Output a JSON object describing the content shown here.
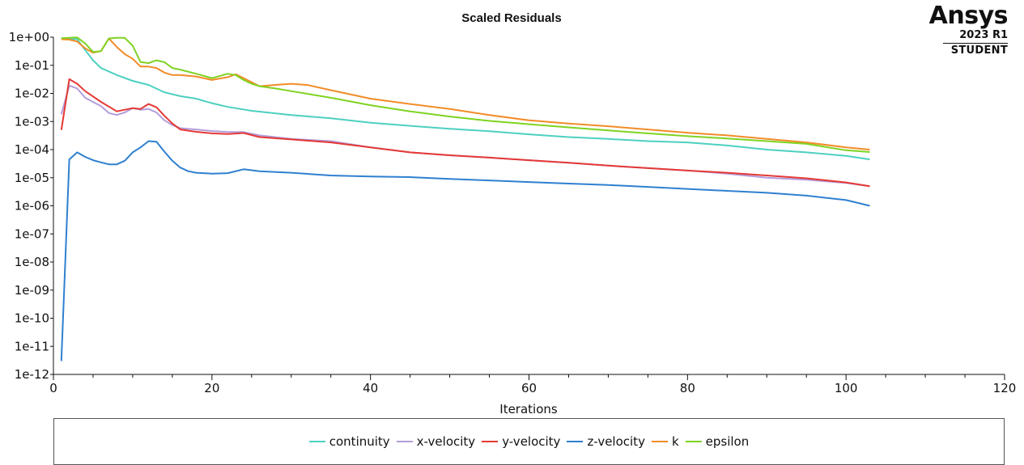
{
  "logo": {
    "brand": "Ansys",
    "version": "2023 R1",
    "edition": "STUDENT"
  },
  "chart_data": {
    "type": "line",
    "title": "Scaled Residuals",
    "xlabel": "Iterations",
    "ylabel": "",
    "xlim": [
      0,
      120
    ],
    "ylim": [
      1e-12,
      1
    ],
    "yscale": "log",
    "xticks": [
      0,
      20,
      40,
      60,
      80,
      100,
      120
    ],
    "xtick_labels": [
      "0",
      "20",
      "40",
      "60",
      "80",
      "100",
      "120"
    ],
    "yticks": [
      1,
      0.1,
      0.01,
      0.001,
      0.0001,
      1e-05,
      1e-06,
      1e-07,
      1e-08,
      1e-09,
      1e-10,
      1e-11,
      1e-12
    ],
    "ytick_labels": [
      "1e+00",
      "1e-01",
      "1e-02",
      "1e-03",
      "1e-04",
      "1e-05",
      "1e-06",
      "1e-07",
      "1e-08",
      "1e-09",
      "1e-10",
      "1e-11",
      "1e-12"
    ],
    "grid": false,
    "legend_position": "bottom",
    "series": [
      {
        "name": "continuity",
        "color": "#4dd0c0",
        "x": [
          1,
          2,
          3,
          4,
          5,
          6,
          8,
          10,
          12,
          14,
          16,
          18,
          20,
          22,
          25,
          30,
          35,
          40,
          45,
          50,
          55,
          60,
          65,
          70,
          75,
          80,
          85,
          90,
          95,
          100,
          103
        ],
        "y": [
          0.9,
          0.88,
          0.85,
          0.35,
          0.15,
          0.08,
          0.045,
          0.028,
          0.02,
          0.011,
          0.008,
          0.0065,
          0.0045,
          0.0033,
          0.0024,
          0.0017,
          0.0013,
          0.0009,
          0.0007,
          0.00055,
          0.00045,
          0.00035,
          0.00028,
          0.00024,
          0.0002,
          0.00018,
          0.00014,
          0.0001,
          8e-05,
          6e-05,
          4.5e-05
        ]
      },
      {
        "name": "x-velocity",
        "color": "#b39ddb",
        "x": [
          1,
          2,
          3,
          4,
          6,
          7,
          8,
          9,
          10,
          11,
          12,
          13,
          14,
          15,
          16,
          18,
          20,
          22,
          24,
          26,
          30,
          35,
          40,
          45,
          50,
          55,
          60,
          65,
          70,
          75,
          80,
          85,
          90,
          95,
          100,
          103
        ],
        "y": [
          0.0018,
          0.019,
          0.015,
          0.007,
          0.0035,
          0.002,
          0.0017,
          0.0021,
          0.003,
          0.0026,
          0.0028,
          0.0021,
          0.0011,
          0.00075,
          0.00058,
          0.00052,
          0.00046,
          0.00042,
          0.00042,
          0.00032,
          0.00024,
          0.0002,
          0.00012,
          8e-05,
          6.3e-05,
          5.2e-05,
          4.2e-05,
          3.4e-05,
          2.7e-05,
          2.2e-05,
          1.8e-05,
          1.4e-05,
          1e-05,
          8.5e-06,
          6.5e-06,
          5e-06
        ]
      },
      {
        "name": "y-velocity",
        "color": "#e53935",
        "x": [
          1,
          2,
          3,
          4,
          6,
          8,
          10,
          11,
          12,
          13,
          14,
          15,
          16,
          18,
          20,
          22,
          24,
          26,
          30,
          35,
          40,
          45,
          50,
          55,
          60,
          65,
          70,
          75,
          80,
          85,
          90,
          95,
          100,
          103
        ],
        "y": [
          0.0005,
          0.032,
          0.022,
          0.012,
          0.005,
          0.0023,
          0.003,
          0.0028,
          0.0042,
          0.0032,
          0.0016,
          0.00085,
          0.00052,
          0.00043,
          0.00038,
          0.00036,
          0.00039,
          0.00028,
          0.00023,
          0.00018,
          0.00012,
          8e-05,
          6.3e-05,
          5.2e-05,
          4.2e-05,
          3.4e-05,
          2.7e-05,
          2.2e-05,
          1.8e-05,
          1.5e-05,
          1.2e-05,
          9.5e-06,
          6.8e-06,
          5e-06
        ]
      },
      {
        "name": "z-velocity",
        "color": "#2f80d0",
        "x": [
          1,
          2,
          3,
          4,
          5,
          6,
          7,
          8,
          9,
          10,
          11,
          12,
          13,
          14,
          15,
          16,
          17,
          18,
          20,
          22,
          24,
          26,
          30,
          35,
          40,
          45,
          50,
          55,
          60,
          65,
          70,
          75,
          80,
          85,
          90,
          95,
          100,
          103
        ],
        "y": [
          3e-12,
          4.5e-05,
          8e-05,
          5.5e-05,
          4.2e-05,
          3.5e-05,
          3e-05,
          3e-05,
          4e-05,
          8e-05,
          0.00012,
          0.0002,
          0.00019,
          8.5e-05,
          4e-05,
          2.3e-05,
          1.7e-05,
          1.5e-05,
          1.4e-05,
          1.45e-05,
          2e-05,
          1.7e-05,
          1.5e-05,
          1.2e-05,
          1.1e-05,
          1.05e-05,
          9e-06,
          8e-06,
          7e-06,
          6.2e-06,
          5.5e-06,
          4.7e-06,
          4e-06,
          3.4e-06,
          2.9e-06,
          2.3e-06,
          1.6e-06,
          1e-06
        ]
      },
      {
        "name": "k",
        "color": "#f28c28",
        "x": [
          1,
          2,
          3,
          4,
          5,
          6,
          7,
          8,
          9,
          10,
          11,
          12,
          13,
          14,
          15,
          16,
          18,
          20,
          22,
          23,
          24,
          26,
          28,
          30,
          32,
          35,
          40,
          45,
          50,
          55,
          60,
          65,
          70,
          75,
          80,
          85,
          90,
          95,
          100,
          103
        ],
        "y": [
          0.85,
          0.82,
          0.7,
          0.4,
          0.28,
          0.32,
          0.9,
          0.45,
          0.25,
          0.17,
          0.09,
          0.09,
          0.08,
          0.055,
          0.045,
          0.045,
          0.04,
          0.03,
          0.038,
          0.048,
          0.035,
          0.018,
          0.02,
          0.022,
          0.02,
          0.013,
          0.0065,
          0.0042,
          0.0028,
          0.0017,
          0.0011,
          0.00085,
          0.00068,
          0.00052,
          0.0004,
          0.00032,
          0.00024,
          0.00018,
          0.00012,
          0.0001
        ]
      },
      {
        "name": "epsilon",
        "color": "#7ed321",
        "x": [
          1,
          2,
          3,
          4,
          5,
          6,
          7,
          8,
          9,
          10,
          11,
          12,
          13,
          14,
          15,
          16,
          18,
          20,
          22,
          23,
          24,
          25,
          26,
          28,
          30,
          35,
          40,
          45,
          50,
          55,
          60,
          65,
          70,
          75,
          80,
          85,
          90,
          95,
          100,
          103
        ],
        "y": [
          0.92,
          0.95,
          0.98,
          0.6,
          0.3,
          0.32,
          0.9,
          0.95,
          0.95,
          0.5,
          0.13,
          0.12,
          0.15,
          0.13,
          0.08,
          0.07,
          0.05,
          0.035,
          0.05,
          0.045,
          0.03,
          0.022,
          0.018,
          0.015,
          0.012,
          0.007,
          0.0038,
          0.0023,
          0.0015,
          0.00105,
          0.0008,
          0.00062,
          0.00048,
          0.00038,
          0.0003,
          0.00025,
          0.0002,
          0.00016,
          9.5e-05,
          8.2e-05
        ]
      }
    ]
  }
}
